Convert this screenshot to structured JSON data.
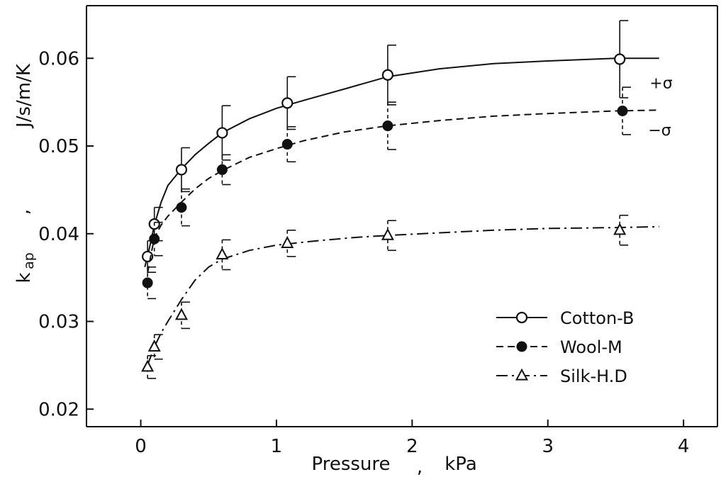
{
  "chart_data": {
    "type": "line",
    "title": "",
    "xlabel": "Pressure , kPa",
    "ylabel": "k_ap , J/s/m/K",
    "ylabel_parts": {
      "symbol": "k",
      "subscript": "ap",
      "sep": ",",
      "unit": "J/s/m/K"
    },
    "xlabel_parts": {
      "name": "Pressure",
      "sep": ",",
      "unit": "kPa"
    },
    "xlim": [
      -0.4,
      4.25
    ],
    "ylim": [
      0.018,
      0.066
    ],
    "xticks": [
      0,
      1,
      2,
      3,
      4
    ],
    "xtick_labels": [
      "0",
      "1",
      "2",
      "3",
      "4"
    ],
    "yticks": [
      0.02,
      0.03,
      0.04,
      0.05,
      0.06
    ],
    "ytick_labels": [
      "0.02",
      "0.03",
      "0.04",
      "0.05",
      "0.06"
    ],
    "grid": false,
    "legend_position": "bottom-right",
    "series": [
      {
        "name": "Cotton-B",
        "marker": "open-circle",
        "line_style": "solid",
        "x": [
          0.05,
          0.1,
          0.3,
          0.6,
          1.08,
          1.82,
          3.53
        ],
        "y": [
          0.0374,
          0.0411,
          0.0473,
          0.0515,
          0.0549,
          0.0581,
          0.0599
        ],
        "err": [
          0.0018,
          0.0019,
          0.0025,
          0.0031,
          0.003,
          0.0034,
          0.0044
        ],
        "curve_x": [
          0.03,
          0.05,
          0.08,
          0.1,
          0.15,
          0.2,
          0.3,
          0.4,
          0.5,
          0.6,
          0.8,
          1.0,
          1.2,
          1.5,
          1.82,
          2.2,
          2.6,
          3.0,
          3.5,
          3.82
        ],
        "curve_y": [
          0.0362,
          0.0374,
          0.0395,
          0.041,
          0.0436,
          0.0455,
          0.0474,
          0.049,
          0.0503,
          0.0515,
          0.0531,
          0.0543,
          0.0552,
          0.0565,
          0.0579,
          0.0588,
          0.0594,
          0.0597,
          0.06,
          0.06
        ]
      },
      {
        "name": "Wool-M",
        "marker": "filled-circle",
        "line_style": "dashed",
        "x": [
          0.05,
          0.1,
          0.3,
          0.6,
          1.08,
          1.82,
          3.55
        ],
        "y": [
          0.0344,
          0.0394,
          0.043,
          0.0473,
          0.0502,
          0.0523,
          0.054
        ],
        "err": [
          0.0018,
          0.0019,
          0.0021,
          0.0017,
          0.002,
          0.0027,
          0.0027
        ],
        "curve_x": [
          0.05,
          0.08,
          0.1,
          0.15,
          0.2,
          0.3,
          0.4,
          0.5,
          0.6,
          0.8,
          1.0,
          1.2,
          1.5,
          1.82,
          2.2,
          2.6,
          3.0,
          3.5,
          3.82
        ],
        "curve_y": [
          0.0355,
          0.038,
          0.0395,
          0.041,
          0.042,
          0.0436,
          0.0451,
          0.0463,
          0.0472,
          0.0487,
          0.0497,
          0.0506,
          0.0516,
          0.0523,
          0.0529,
          0.0534,
          0.0537,
          0.054,
          0.0541
        ]
      },
      {
        "name": "Silk-H.D",
        "marker": "open-triangle",
        "line_style": "dash-dot",
        "x": [
          0.05,
          0.1,
          0.3,
          0.6,
          1.08,
          1.82,
          3.53
        ],
        "y": [
          0.0248,
          0.0271,
          0.0307,
          0.0376,
          0.0389,
          0.0398,
          0.0404
        ],
        "err": [
          0.0013,
          0.0014,
          0.0015,
          0.0017,
          0.0015,
          0.0017,
          0.0017
        ],
        "curve_x": [
          0.05,
          0.1,
          0.15,
          0.2,
          0.3,
          0.4,
          0.5,
          0.6,
          0.8,
          1.0,
          1.3,
          1.6,
          1.82,
          2.2,
          2.6,
          3.0,
          3.5,
          3.82
        ],
        "curve_y": [
          0.025,
          0.0271,
          0.0287,
          0.03,
          0.0325,
          0.0347,
          0.0362,
          0.0371,
          0.0381,
          0.0387,
          0.0392,
          0.0396,
          0.0398,
          0.0401,
          0.0404,
          0.0406,
          0.0407,
          0.0408
        ]
      }
    ],
    "annotations": [
      {
        "text": "+σ",
        "x": 3.75,
        "y": 0.0566
      },
      {
        "text": "−σ",
        "x": 3.74,
        "y": 0.0512
      }
    ]
  }
}
